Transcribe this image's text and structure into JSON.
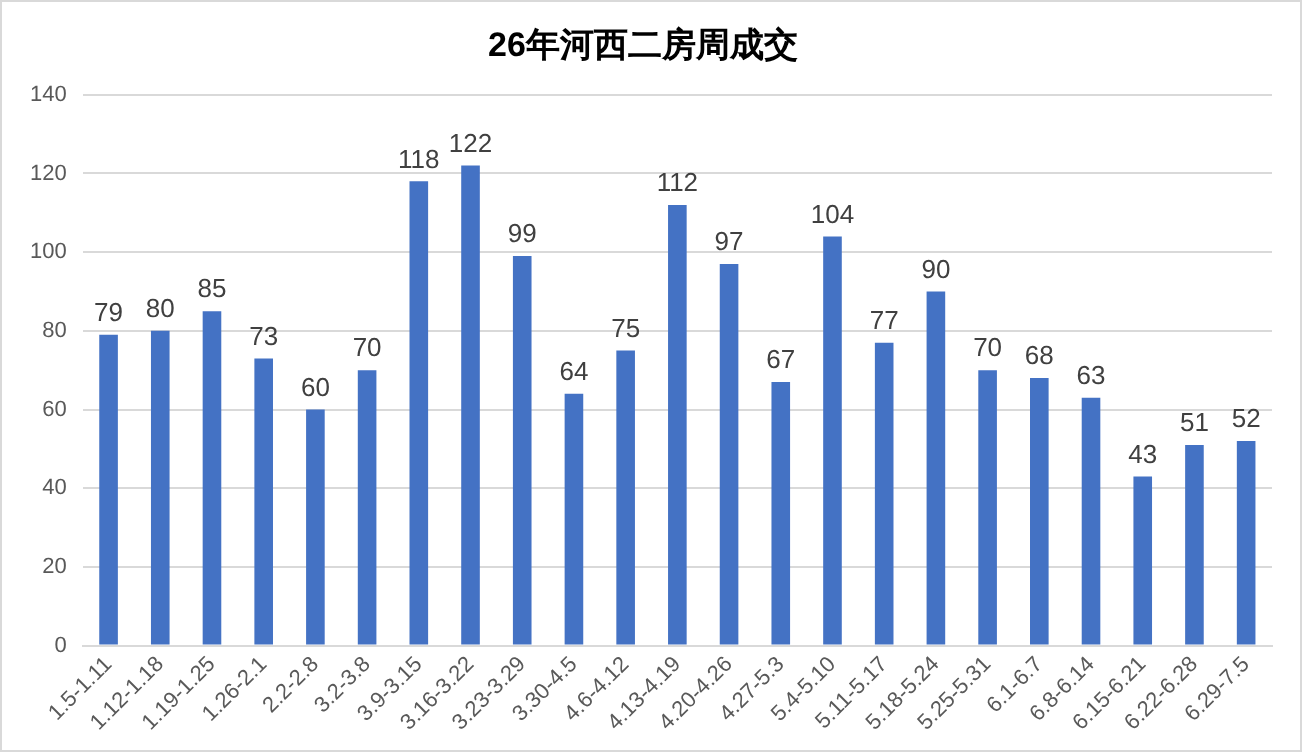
{
  "chart_data": {
    "type": "bar",
    "title": "26年河西二房周成交",
    "categories": [
      "1.5-1.11",
      "1.12-1.18",
      "1.19-1.25",
      "1.26-2.1",
      "2.2-2.8",
      "3.2-3.8",
      "3.9-3.15",
      "3.16-3.22",
      "3.23-3.29",
      "3.30-4.5",
      "4.6-4.12",
      "4.13-4.19",
      "4.20-4.26",
      "4.27-5.3",
      "5.4-5.10",
      "5.11-5.17",
      "5.18-5.24",
      "5.25-5.31",
      "6.1-6.7",
      "6.8-6.14",
      "6.15-6.21",
      "6.22-6.28",
      "6.29-7.5"
    ],
    "values": [
      79,
      80,
      85,
      73,
      60,
      70,
      118,
      122,
      99,
      64,
      75,
      112,
      97,
      67,
      104,
      77,
      90,
      70,
      68,
      63,
      43,
      51,
      52
    ],
    "color": "#4472c4",
    "ylim": [
      0,
      140
    ],
    "yticks": [
      0,
      20,
      40,
      60,
      80,
      100,
      120,
      140
    ],
    "grid": "y",
    "data_labels": true
  }
}
